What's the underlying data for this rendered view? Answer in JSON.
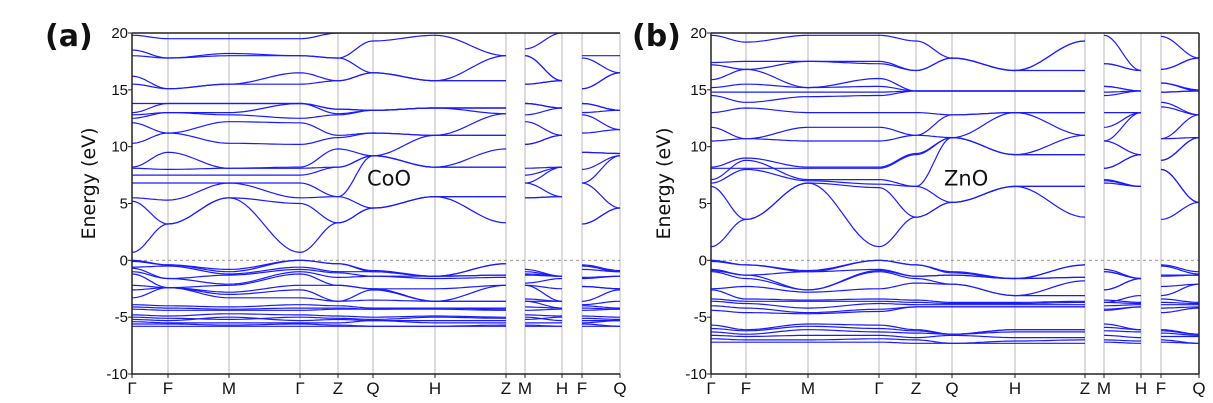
{
  "chart_data": [
    {
      "type": "line",
      "panel_label": "(a)",
      "title": "CoO",
      "ylabel": "Energy (eV)",
      "xlabel": "",
      "ylim": [
        -10,
        20
      ],
      "yticks": [
        -10,
        -5,
        0,
        5,
        10,
        15,
        20
      ],
      "fermi_level": 0,
      "kpoints": [
        "Γ",
        "F",
        "M",
        "Γ",
        "Z",
        "Q",
        "H",
        "Z",
        "M",
        "H",
        "F",
        "Q"
      ],
      "k_distance": [
        0,
        36,
        97,
        168,
        206,
        241,
        303,
        374,
        393,
        430,
        450,
        488
      ],
      "path_segments": [
        [
          0,
          7
        ],
        [
          8,
          9
        ],
        [
          10,
          11
        ]
      ],
      "color": "#1a1aff",
      "bands": [
        [
          0.7,
          3.2,
          5.5,
          0.7,
          3.3,
          4.6,
          5.6,
          3.3,
          5.5,
          5.6,
          3.2,
          4.6
        ],
        [
          5.2,
          3.2,
          5.5,
          5.0,
          3.3,
          4.6,
          5.6,
          5.6,
          5.5,
          5.6,
          3.2,
          4.6
        ],
        [
          5.5,
          5.3,
          6.8,
          5.5,
          5.6,
          4.6,
          5.6,
          5.6,
          6.8,
          5.6,
          6.8,
          4.6
        ],
        [
          6.8,
          6.8,
          6.8,
          6.8,
          5.6,
          9.2,
          8.2,
          8.2,
          6.8,
          8.2,
          6.8,
          9.2
        ],
        [
          7.5,
          7.5,
          7.5,
          7.5,
          8.2,
          9.2,
          8.2,
          8.2,
          7.5,
          8.2,
          8.0,
          9.2
        ],
        [
          8.1,
          8.0,
          8.1,
          8.1,
          8.2,
          9.2,
          8.2,
          9.8,
          8.1,
          8.2,
          9.5,
          9.4
        ],
        [
          8.2,
          9.5,
          8.1,
          8.2,
          9.8,
          9.2,
          11.0,
          11.0,
          10.2,
          11.0,
          9.5,
          9.4
        ],
        [
          10.3,
          11.2,
          10.3,
          10.2,
          10.8,
          11.2,
          11.0,
          11.0,
          10.2,
          11.0,
          11.2,
          11.5
        ],
        [
          12.1,
          11.2,
          12.2,
          12.1,
          11.0,
          11.2,
          11.0,
          12.9,
          12.2,
          11.0,
          12.8,
          11.5
        ],
        [
          12.5,
          13.0,
          12.8,
          12.5,
          12.8,
          13.2,
          13.4,
          12.9,
          12.8,
          13.4,
          13.0,
          13.2
        ],
        [
          12.8,
          13.0,
          13.0,
          13.8,
          12.9,
          13.2,
          13.4,
          13.4,
          13.8,
          13.4,
          13.8,
          13.2
        ],
        [
          13.0,
          13.8,
          13.8,
          13.8,
          13.3,
          13.2,
          13.4,
          13.4,
          13.8,
          13.4,
          13.8,
          13.2
        ],
        [
          13.8,
          13.8,
          13.8,
          13.8,
          13.3,
          13.2,
          13.4,
          13.4,
          13.8,
          13.4,
          13.8,
          13.2
        ],
        [
          15.5,
          15.1,
          15.5,
          15.5,
          15.8,
          16.5,
          15.8,
          15.8,
          15.5,
          15.8,
          15.1,
          16.5
        ],
        [
          16.2,
          15.1,
          15.5,
          16.5,
          15.8,
          16.5,
          15.8,
          15.8,
          15.5,
          15.8,
          15.1,
          16.5
        ],
        [
          18.0,
          17.8,
          18.0,
          18.0,
          17.8,
          16.5,
          15.8,
          18.0,
          18.0,
          15.8,
          17.8,
          16.5
        ],
        [
          18.5,
          17.8,
          18.2,
          18.0,
          17.8,
          19.3,
          19.8,
          18.0,
          18.0,
          15.8,
          18.0,
          18.0
        ],
        [
          19.8,
          19.5,
          19.5,
          19.5,
          20,
          20,
          20,
          20,
          18.6,
          20,
          20,
          20
        ],
        [
          0,
          -0.4,
          -0.8,
          0,
          -0.3,
          -0.9,
          -1.4,
          -0.3,
          -0.8,
          -1.4,
          -0.4,
          -0.9
        ],
        [
          -0.1,
          -0.4,
          -1.0,
          0,
          -0.3,
          -1.0,
          -1.4,
          -0.3,
          -1.0,
          -1.4,
          -0.5,
          -1.0
        ],
        [
          -0.6,
          -0.5,
          -1.2,
          -0.6,
          -1.0,
          -1.0,
          -1.4,
          -1.3,
          -1.2,
          -1.4,
          -0.8,
          -1.0
        ],
        [
          -0.7,
          -1.6,
          -1.3,
          -0.8,
          -1.1,
          -1.4,
          -1.4,
          -1.3,
          -1.3,
          -1.4,
          -1.5,
          -1.4
        ],
        [
          -1.0,
          -1.6,
          -2.1,
          -1.0,
          -1.5,
          -1.4,
          -1.6,
          -1.5,
          -2.0,
          -1.6,
          -1.6,
          -1.4
        ],
        [
          -1.2,
          -2.4,
          -2.2,
          -1.2,
          -2.2,
          -2.5,
          -2.5,
          -2.2,
          -2.2,
          -2.5,
          -2.3,
          -2.5
        ],
        [
          -2.2,
          -2.4,
          -2.8,
          -2.2,
          -2.2,
          -2.5,
          -3.6,
          -2.2,
          -2.2,
          -3.6,
          -2.3,
          -2.5
        ],
        [
          -2.6,
          -2.4,
          -3.0,
          -2.6,
          -3.6,
          -2.6,
          -3.6,
          -3.6,
          -3.4,
          -3.6,
          -3.6,
          -2.6
        ],
        [
          -3.3,
          -2.4,
          -3.3,
          -3.3,
          -3.6,
          -3.5,
          -3.6,
          -3.6,
          -3.6,
          -3.6,
          -3.9,
          -3.6
        ],
        [
          -3.9,
          -4.0,
          -4.1,
          -3.9,
          -4.0,
          -4.2,
          -4.2,
          -4.2,
          -3.6,
          -4.2,
          -4.0,
          -4.2
        ],
        [
          -4.1,
          -4.2,
          -4.3,
          -4.2,
          -4.2,
          -4.3,
          -4.2,
          -4.3,
          -4.1,
          -4.2,
          -4.2,
          -4.3
        ],
        [
          -4.3,
          -4.4,
          -4.4,
          -4.4,
          -4.3,
          -4.3,
          -4.3,
          -4.4,
          -4.4,
          -4.3,
          -4.4,
          -4.3
        ],
        [
          -4.8,
          -4.9,
          -4.7,
          -4.8,
          -4.9,
          -5.0,
          -4.9,
          -5.0,
          -4.8,
          -4.9,
          -4.9,
          -5.0
        ],
        [
          -5.0,
          -5.1,
          -5.2,
          -5.0,
          -5.1,
          -5.2,
          -5.0,
          -5.1,
          -5.2,
          -5.0,
          -5.1,
          -5.2
        ],
        [
          -5.2,
          -5.3,
          -5.0,
          -5.3,
          -5.2,
          -5.3,
          -5.3,
          -5.3,
          -5.0,
          -5.3,
          -5.3,
          -5.3
        ],
        [
          -5.4,
          -5.5,
          -5.5,
          -5.5,
          -5.5,
          -5.3,
          -5.5,
          -5.5,
          -5.5,
          -5.5,
          -5.5,
          -5.3
        ],
        [
          -5.6,
          -5.6,
          -5.7,
          -5.6,
          -5.7,
          -5.8,
          -5.8,
          -5.7,
          -5.7,
          -5.8,
          -5.6,
          -5.8
        ],
        [
          -5.8,
          -5.8,
          -5.8,
          -5.8,
          -5.8,
          -5.8,
          -5.8,
          -5.8,
          -5.8,
          -5.8,
          -5.8,
          -5.8
        ]
      ]
    },
    {
      "type": "line",
      "panel_label": "(b)",
      "title": "ZnO",
      "ylabel": "Energy (eV)",
      "xlabel": "",
      "ylim": [
        -10,
        20
      ],
      "yticks": [
        -10,
        -5,
        0,
        5,
        10,
        15,
        20
      ],
      "fermi_level": 0,
      "kpoints": [
        "Γ",
        "F",
        "M",
        "Γ",
        "Z",
        "Q",
        "H",
        "Z",
        "M",
        "H",
        "F",
        "Q"
      ],
      "k_distance": [
        0,
        35,
        97,
        168,
        205,
        241,
        304,
        374,
        393,
        430,
        450,
        488
      ],
      "path_segments": [
        [
          0,
          7
        ],
        [
          8,
          9
        ],
        [
          10,
          11
        ]
      ],
      "color": "#1a1aff",
      "bands": [
        [
          1.2,
          3.6,
          6.8,
          1.2,
          3.8,
          5.1,
          6.5,
          3.8,
          6.8,
          6.5,
          3.6,
          5.1
        ],
        [
          6.5,
          3.6,
          6.8,
          6.4,
          3.8,
          5.1,
          6.5,
          6.5,
          7.0,
          6.5,
          8.0,
          5.1
        ],
        [
          6.8,
          8.0,
          7.0,
          6.7,
          6.5,
          5.1,
          6.5,
          6.5,
          7.1,
          6.5,
          8.0,
          5.1
        ],
        [
          7.1,
          8.8,
          7.1,
          7.1,
          6.5,
          10.8,
          9.3,
          9.3,
          8.1,
          9.3,
          8.8,
          10.8
        ],
        [
          8.1,
          8.1,
          8.1,
          8.1,
          9.3,
          10.8,
          9.3,
          9.3,
          8.1,
          9.3,
          8.8,
          10.8
        ],
        [
          8.2,
          9.0,
          8.2,
          8.2,
          9.4,
          10.8,
          9.3,
          11.0,
          10.5,
          9.3,
          10.7,
          10.8
        ],
        [
          10.5,
          10.7,
          10.5,
          10.5,
          11.0,
          10.8,
          13.0,
          11.0,
          10.5,
          13.0,
          10.7,
          12.8
        ],
        [
          11.7,
          10.7,
          11.7,
          11.7,
          11.0,
          12.8,
          13.0,
          13.0,
          11.7,
          13.0,
          13.5,
          12.8
        ],
        [
          13.0,
          13.4,
          13.0,
          13.0,
          13.0,
          12.8,
          13.0,
          13.0,
          13.0,
          13.0,
          13.9,
          12.8
        ],
        [
          14.5,
          13.9,
          14.4,
          14.5,
          14.9,
          14.9,
          14.9,
          14.9,
          14.5,
          14.9,
          14.8,
          14.9
        ],
        [
          14.8,
          14.8,
          14.8,
          14.8,
          14.9,
          14.9,
          14.9,
          14.9,
          14.8,
          14.9,
          14.8,
          14.9
        ],
        [
          15.2,
          15.5,
          15.2,
          15.3,
          14.9,
          14.9,
          14.9,
          14.9,
          15.3,
          14.9,
          15.6,
          14.9
        ],
        [
          15.9,
          16.8,
          15.2,
          16.0,
          14.9,
          14.9,
          14.9,
          14.9,
          15.3,
          14.9,
          15.6,
          15.0
        ],
        [
          17.2,
          16.8,
          17.5,
          17.3,
          16.7,
          17.8,
          16.7,
          16.7,
          17.3,
          16.7,
          16.8,
          17.8
        ],
        [
          17.4,
          17.5,
          17.5,
          17.5,
          16.7,
          17.8,
          16.7,
          19.3,
          17.3,
          16.7,
          16.8,
          17.8
        ],
        [
          19.8,
          19.2,
          19.8,
          19.8,
          19.3,
          17.8,
          16.7,
          19.3,
          19.8,
          16.7,
          19.7,
          17.8
        ],
        [
          0,
          -0.4,
          -0.9,
          0,
          -0.4,
          -1.0,
          -1.6,
          -0.4,
          -0.8,
          -1.6,
          -0.4,
          -1.0
        ],
        [
          -0.1,
          -0.4,
          -1.0,
          0,
          -0.4,
          -1.1,
          -1.6,
          -0.4,
          -1.0,
          -1.6,
          -0.5,
          -1.2
        ],
        [
          -0.8,
          -1.3,
          -1.0,
          -0.8,
          -1.4,
          -1.3,
          -1.6,
          -1.5,
          -1.0,
          -1.6,
          -1.3,
          -1.3
        ],
        [
          -0.9,
          -1.3,
          -2.6,
          -0.9,
          -1.4,
          -1.3,
          -1.6,
          -1.5,
          -2.6,
          -1.6,
          -1.4,
          -1.3
        ],
        [
          -1.0,
          -1.6,
          -2.6,
          -1.0,
          -1.6,
          -2.1,
          -3.1,
          -1.8,
          -2.6,
          -1.6,
          -2.3,
          -2.1
        ],
        [
          -2.5,
          -2.3,
          -2.8,
          -2.5,
          -2.0,
          -2.1,
          -3.1,
          -3.1,
          -3.7,
          -3.1,
          -3.1,
          -2.1
        ],
        [
          -2.6,
          -3.4,
          -3.5,
          -3.4,
          -3.5,
          -3.7,
          -3.7,
          -3.6,
          -3.5,
          -3.7,
          -3.4,
          -3.7
        ],
        [
          -3.4,
          -3.6,
          -3.6,
          -3.6,
          -3.7,
          -3.8,
          -3.8,
          -3.7,
          -3.7,
          -3.8,
          -3.7,
          -3.8
        ],
        [
          -3.6,
          -3.8,
          -4.2,
          -3.8,
          -3.9,
          -3.9,
          -3.9,
          -3.9,
          -4.0,
          -3.9,
          -3.9,
          -3.9
        ],
        [
          -4.0,
          -4.2,
          -4.6,
          -4.3,
          -4.1,
          -4.1,
          -4.1,
          -4.1,
          -4.3,
          -4.1,
          -4.2,
          -4.1
        ],
        [
          -4.4,
          -4.6,
          -4.7,
          -4.5,
          -4.1,
          -4.1,
          -4.1,
          -4.1,
          -4.4,
          -4.1,
          -4.6,
          -4.2
        ],
        [
          -5.7,
          -6.1,
          -5.6,
          -5.7,
          -6.1,
          -6.5,
          -6.1,
          -6.1,
          -5.6,
          -6.1,
          -6.1,
          -6.5
        ],
        [
          -6.0,
          -6.2,
          -5.8,
          -6.0,
          -6.2,
          -6.5,
          -6.1,
          -6.1,
          -5.9,
          -6.1,
          -6.2,
          -6.5
        ],
        [
          -6.3,
          -6.5,
          -6.1,
          -6.3,
          -6.4,
          -6.5,
          -6.3,
          -6.3,
          -6.2,
          -6.3,
          -6.4,
          -6.6
        ],
        [
          -6.6,
          -6.7,
          -6.6,
          -6.6,
          -6.8,
          -6.6,
          -6.8,
          -6.8,
          -6.6,
          -6.8,
          -6.7,
          -6.7
        ],
        [
          -6.9,
          -7.0,
          -7.0,
          -6.9,
          -7.0,
          -7.3,
          -7.1,
          -7.0,
          -7.0,
          -7.1,
          -7.0,
          -7.3
        ],
        [
          -7.2,
          -7.2,
          -7.2,
          -7.2,
          -7.3,
          -7.3,
          -7.3,
          -7.3,
          -7.2,
          -7.3,
          -7.2,
          -7.3
        ]
      ]
    }
  ]
}
